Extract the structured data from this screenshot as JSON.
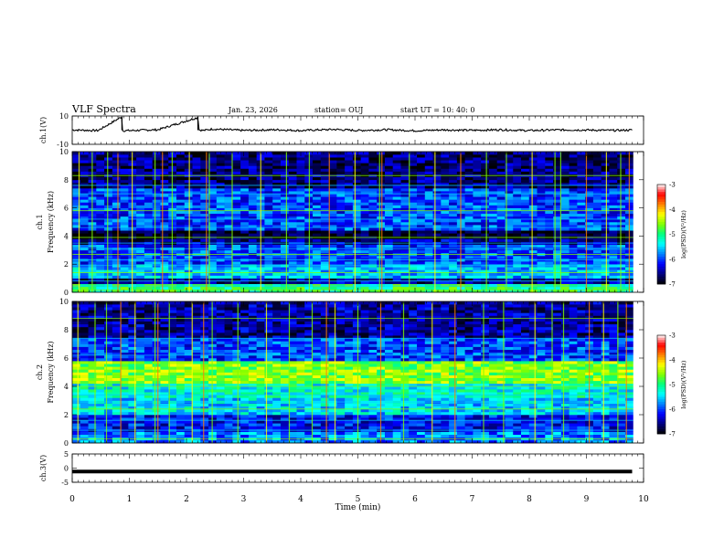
{
  "header": {
    "title": "VLF Spectra",
    "date": "Jan. 23, 2026",
    "station": "station= OUJ",
    "start": "start  UT  =   10: 40: 0"
  },
  "colors": {
    "colormap": [
      "#000000",
      "#00007f",
      "#0000ff",
      "#0080ff",
      "#00ffff",
      "#00ff80",
      "#80ff00",
      "#ffff00",
      "#ff8000",
      "#ff0000",
      "#ffffff"
    ]
  },
  "chart_data": [
    {
      "type": "line",
      "ylabel": "ch.1(V)",
      "ylim": [
        -10,
        10
      ],
      "yticks": [
        "10",
        "-10"
      ],
      "x": [
        0.0,
        0.45,
        0.87,
        0.88,
        0.9,
        1.5,
        2.2,
        2.22,
        2.3,
        2.45,
        3.0,
        3.6,
        4.0,
        4.3,
        4.6,
        5.0,
        5.5,
        6.0,
        6.5,
        7.0,
        7.5,
        8.0,
        8.5,
        9.0,
        9.5,
        9.8
      ],
      "values": [
        0.2,
        -0.3,
        9.5,
        0.1,
        -0.4,
        0.3,
        9.0,
        0.2,
        -0.2,
        0.8,
        -0.2,
        0.3,
        -0.3,
        0.2,
        0.5,
        -0.2,
        0.3,
        -0.4,
        0.2,
        -0.1,
        0.3,
        -0.3,
        0.2,
        0.1,
        -0.2,
        0.1
      ]
    },
    {
      "type": "heatmap",
      "ylabel": "Frequency  (kHz)",
      "channel": "ch.1",
      "ylim": [
        0,
        10
      ],
      "yticks": [
        "0",
        "2",
        "4",
        "6",
        "8",
        "10"
      ],
      "colorbar_label": "log(PSD)(V²/Hz)",
      "colorbar_ticks": [
        "-3",
        "-4",
        "-5",
        "-6",
        "-7"
      ],
      "clim": [
        -7,
        -3
      ],
      "band_kHz": [
        [
          0,
          0.6,
          -5.0
        ],
        [
          1.0,
          2.0,
          -5.6
        ],
        [
          2.0,
          3.4,
          -6.0
        ],
        [
          3.8,
          4.5,
          -6.9
        ],
        [
          4.5,
          7.5,
          -6.0
        ],
        [
          7.5,
          10,
          -6.6
        ]
      ],
      "lines_kHz": [
        0.15,
        0.45,
        0.8,
        1.4,
        1.9,
        2.3,
        2.7,
        3.1,
        3.5,
        3.9,
        4.6,
        5.2,
        5.8,
        7.0,
        7.6,
        8.3
      ],
      "bursts_min": [
        0.12,
        0.35,
        0.62,
        0.8,
        1.05,
        1.45,
        1.58,
        1.75,
        2.05,
        2.35,
        2.4,
        2.8,
        3.3,
        3.75,
        4.15,
        4.5,
        4.95,
        5.38,
        5.42,
        5.9,
        6.35,
        6.8,
        7.25,
        7.6,
        8.05,
        8.45,
        8.55,
        9.0,
        9.35,
        9.6,
        9.75
      ]
    },
    {
      "type": "heatmap",
      "ylabel": "Frequency  (kHz)",
      "channel": "ch.2",
      "ylim": [
        0,
        10
      ],
      "yticks": [
        "0",
        "2",
        "4",
        "6",
        "8",
        "10"
      ],
      "colorbar_label": "log(PSD)(V²/Hz)",
      "colorbar_ticks": [
        "-3",
        "-4",
        "-5",
        "-6",
        "-7"
      ],
      "clim": [
        -7,
        -3
      ],
      "band_kHz": [
        [
          0,
          0.8,
          -5.8
        ],
        [
          0.8,
          2.0,
          -6.2
        ],
        [
          2.0,
          3.2,
          -5.5
        ],
        [
          3.2,
          4.2,
          -5.3
        ],
        [
          4.2,
          5.8,
          -4.6
        ],
        [
          5.8,
          7.5,
          -6.0
        ],
        [
          7.5,
          10,
          -6.5
        ]
      ],
      "lines_kHz": [
        0.3,
        0.9,
        1.6,
        2.4,
        2.9,
        3.4,
        4.0,
        6.2,
        7.4,
        8.8
      ],
      "bursts_min": [
        0.1,
        0.4,
        0.6,
        0.85,
        1.1,
        1.45,
        1.5,
        1.7,
        2.1,
        2.3,
        2.45,
        2.9,
        3.4,
        3.8,
        4.2,
        4.45,
        4.6,
        5.0,
        5.4,
        5.8,
        6.3,
        6.7,
        7.2,
        7.55,
        8.1,
        8.4,
        8.6,
        9.05,
        9.3,
        9.55,
        9.7
      ]
    },
    {
      "type": "line",
      "ylabel": "ch.3(V)",
      "ylim": [
        -5,
        5
      ],
      "yticks": [
        "5",
        "0",
        "-5"
      ],
      "x": [
        0,
        9.8
      ],
      "values": [
        -1.2,
        -1.2
      ]
    },
    {
      "type": "axis",
      "xlabel": "Time  (min)",
      "xlim": [
        0,
        10
      ],
      "xticks": [
        "0",
        "1",
        "2",
        "3",
        "4",
        "5",
        "6",
        "7",
        "8",
        "9",
        "10"
      ]
    }
  ]
}
